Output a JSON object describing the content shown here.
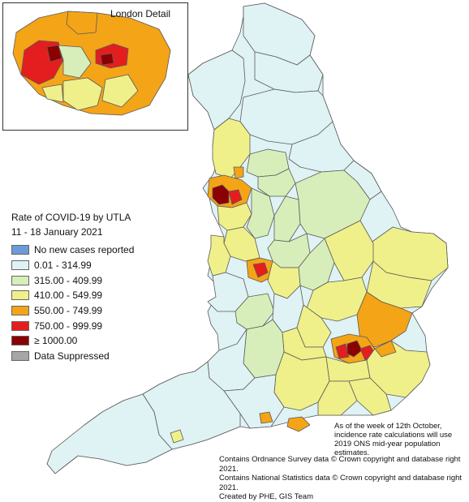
{
  "colors": {
    "none": "#6d9bd6",
    "band1": "#dff2f4",
    "band2": "#d7eeba",
    "band3": "#f0f08a",
    "band4": "#f4a417",
    "band5": "#e41e1e",
    "band6": "#8b0000",
    "suppressed": "#a6a6a6",
    "outline": "#5a5a5a"
  },
  "inset": {
    "title": "London Detail"
  },
  "legend": {
    "title": "Rate of COVID-19 by UTLA",
    "subtitle": "11 - 18 January 2021",
    "items": [
      {
        "label": "No new cases reported",
        "color": "#6d9bd6"
      },
      {
        "label": "0.01 - 314.99",
        "color": "#dff2f4"
      },
      {
        "label": "315.00 - 409.99",
        "color": "#d7eeba"
      },
      {
        "label": "410.00 - 549.99",
        "color": "#f0f08a"
      },
      {
        "label": "550.00 - 749.99",
        "color": "#f4a417"
      },
      {
        "label": "750.00 - 999.99",
        "color": "#e41e1e"
      },
      {
        "label": "≥ 1000.00",
        "color": "#8b0000"
      },
      {
        "label": "Data Suppressed",
        "color": "#a6a6a6"
      }
    ]
  },
  "note": {
    "line1": "As of the week of 12th October,",
    "line2": "incidence rate calculations will use",
    "line3": "2019 ONS mid-year population estimates."
  },
  "credits": {
    "line1": "Contains Ordnance Survey data © Crown copyright and database right 2021.",
    "line2": "Contains National Statistics data © Crown copyright and database right 2021.",
    "line3": "Created by PHE, GIS Team"
  }
}
